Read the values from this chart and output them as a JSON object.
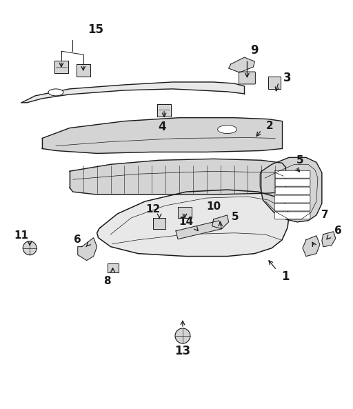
{
  "bg_color": "#ffffff",
  "line_color": "#1a1a1a",
  "fig_width": 5.12,
  "fig_height": 5.93,
  "dpi": 100,
  "lw_main": 1.0,
  "lw_thin": 0.6,
  "lw_thick": 1.2,
  "fill_light": "#e8e8e8",
  "fill_mid": "#d4d4d4",
  "fill_dark": "#c0c0c0"
}
